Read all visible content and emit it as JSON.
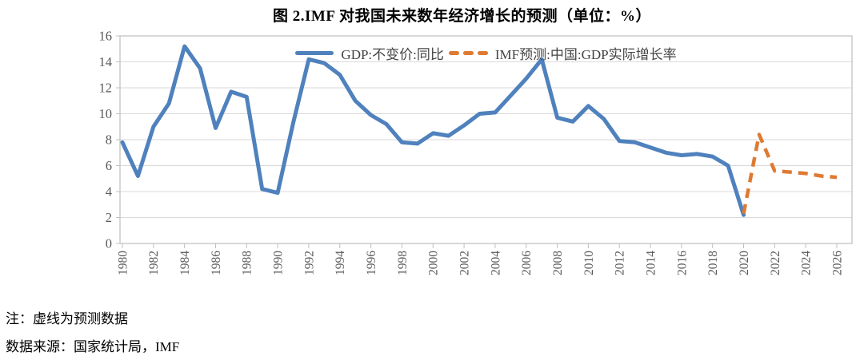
{
  "title": "图 2.IMF 对我国未来数年经济增长的预测（单位：%）",
  "notes": {
    "line1": "注：虚线为预测数据",
    "line2": "数据来源：国家统计局，IMF"
  },
  "colors": {
    "gdp_line": "#4F81BD",
    "imf_line": "#DE7A33",
    "gridline": "#D9D9D9",
    "plot_border": "#BFBFBF",
    "tick_text": "#595959"
  },
  "chart_data": {
    "type": "line",
    "title": "图 2.IMF 对我国未来数年经济增长的预测（单位：%）",
    "xlabel": "",
    "ylabel": "",
    "ylim": [
      0,
      16
    ],
    "yticks": [
      0,
      2,
      4,
      6,
      8,
      10,
      12,
      14,
      16
    ],
    "xlim": [
      1980,
      2027
    ],
    "xticks": [
      1980,
      1982,
      1984,
      1986,
      1988,
      1990,
      1992,
      1994,
      1996,
      1998,
      2000,
      2002,
      2004,
      2006,
      2008,
      2010,
      2012,
      2014,
      2016,
      2018,
      2020,
      2022,
      2024,
      2026
    ],
    "grid": true,
    "legend_position": "top-center",
    "series": [
      {
        "name": "GDP:不变价:同比",
        "color": "#4F81BD",
        "line_style": "solid",
        "x": [
          1980,
          1981,
          1982,
          1983,
          1984,
          1985,
          1986,
          1987,
          1988,
          1989,
          1990,
          1991,
          1992,
          1993,
          1994,
          1995,
          1996,
          1997,
          1998,
          1999,
          2000,
          2001,
          2002,
          2003,
          2004,
          2005,
          2006,
          2007,
          2008,
          2009,
          2010,
          2011,
          2012,
          2013,
          2014,
          2015,
          2016,
          2017,
          2018,
          2019,
          2020
        ],
        "values": [
          7.8,
          5.2,
          9.0,
          10.8,
          15.2,
          13.5,
          8.9,
          11.7,
          11.3,
          4.2,
          3.9,
          9.3,
          14.2,
          13.9,
          13.0,
          11.0,
          9.9,
          9.2,
          7.8,
          7.7,
          8.5,
          8.3,
          9.1,
          10.0,
          10.1,
          11.4,
          12.7,
          14.2,
          9.7,
          9.4,
          10.6,
          9.6,
          7.9,
          7.8,
          7.4,
          7.0,
          6.8,
          6.9,
          6.7,
          6.0,
          2.2
        ]
      },
      {
        "name": "IMF预测:中国:GDP实际增长率",
        "color": "#DE7A33",
        "line_style": "dashed",
        "x": [
          2020,
          2021,
          2022,
          2023,
          2024,
          2025,
          2026
        ],
        "values": [
          2.3,
          8.4,
          5.6,
          5.5,
          5.4,
          5.2,
          5.1
        ]
      }
    ]
  }
}
